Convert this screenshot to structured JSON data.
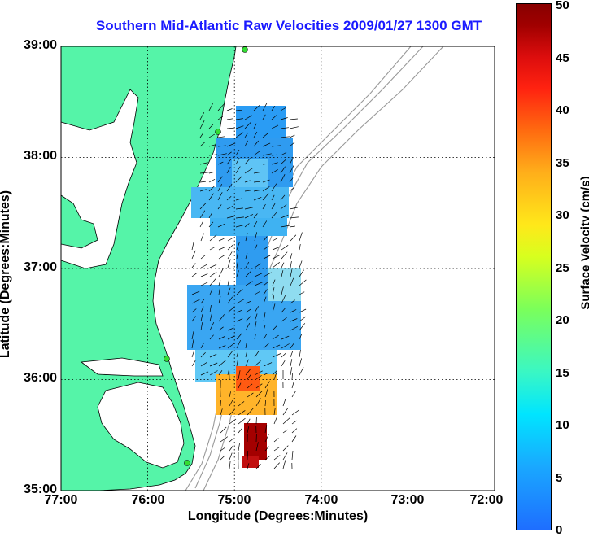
{
  "title": "Southern Mid-Atlantic Raw Velocities 2009/01/27 1300 GMT",
  "axes": {
    "xlabel": "Longitude (Degrees:Minutes)",
    "ylabel": "Latitude (Degrees:Minutes)",
    "x_ticks": [
      "77:00",
      "76:00",
      "75:00",
      "74:00",
      "73:00",
      "72:00"
    ],
    "y_ticks": [
      "39:00",
      "38:00",
      "37:00",
      "36:00",
      "35:00"
    ],
    "lon_range_west": [
      77,
      72
    ],
    "lat_range": [
      35,
      39
    ],
    "grid": "dotted"
  },
  "colorbar": {
    "label": "Surface Velocity (cm/s)",
    "ticks": [
      "50",
      "45",
      "40",
      "35",
      "30",
      "25",
      "20",
      "15",
      "10",
      "5",
      "0"
    ],
    "range": [
      0,
      50
    ],
    "colors": [
      "#1e6eff",
      "#00e5ff",
      "#7bff5a",
      "#ffe81a",
      "#ff6a10",
      "#880000"
    ]
  },
  "colors": {
    "land": "#55f4a8",
    "coast": "#000000",
    "bathymetry": "#999999",
    "stations": "#33dd33"
  }
}
